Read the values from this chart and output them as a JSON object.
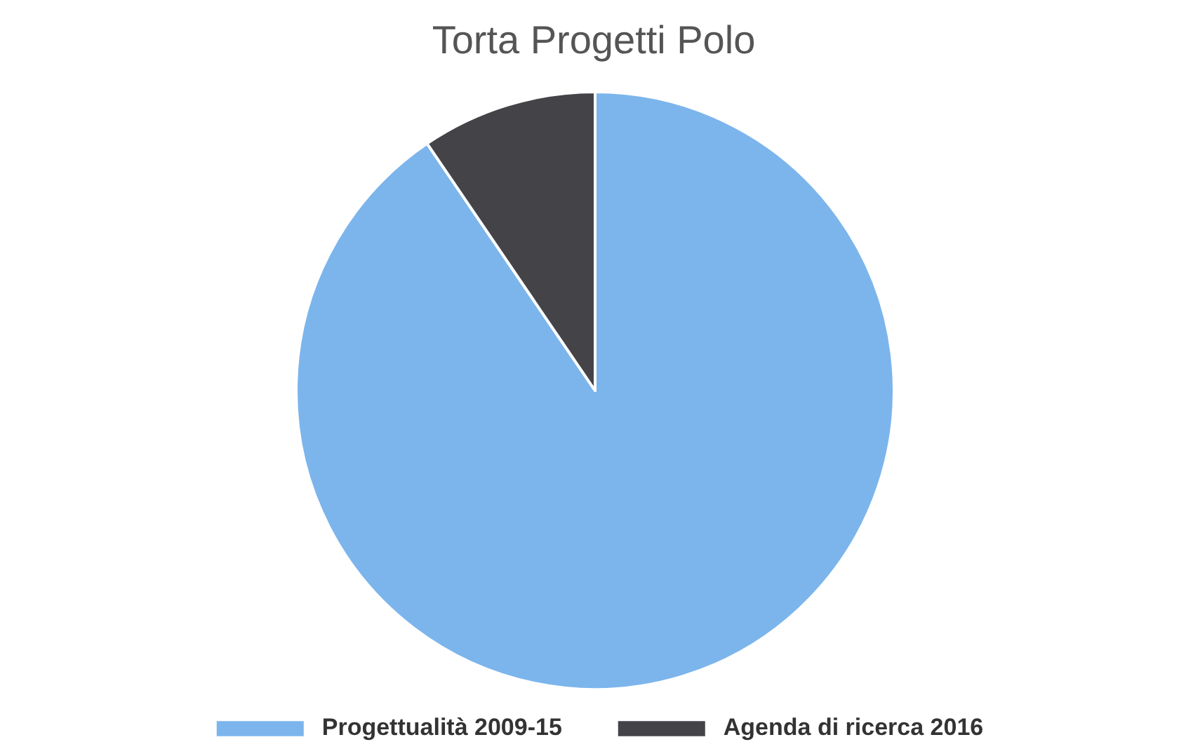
{
  "chart_data": {
    "type": "pie",
    "title": "Torta Progetti Polo",
    "categories": [
      "Progettualità 2009-15",
      "Agenda di ricerca 2016"
    ],
    "values": [
      90.5,
      9.5
    ],
    "colors": [
      "#7cb5ec",
      "#434348"
    ],
    "legend": "bottom"
  }
}
